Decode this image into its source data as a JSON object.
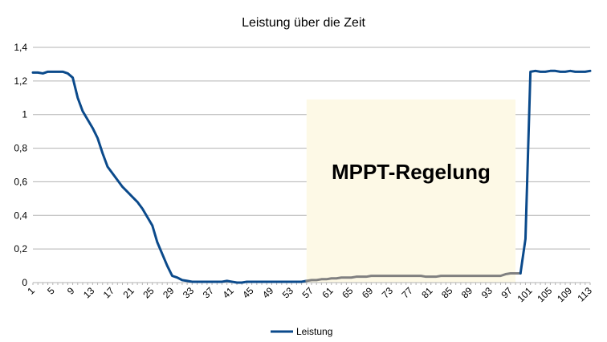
{
  "chart_data": {
    "type": "line",
    "title": "Leistung über die Zeit",
    "xlabel": "",
    "ylabel": "",
    "ylim": [
      0,
      1.4
    ],
    "yticks": [
      "0",
      "0,2",
      "0,4",
      "0,6",
      "0,8",
      "1",
      "1,2",
      "1,4"
    ],
    "x_count": 113,
    "x_tick_step": 4,
    "grid": "horizontal",
    "legend_position": "bottom",
    "series": [
      {
        "name": "Leistung",
        "color": "#0b4a8b",
        "highlight_color": "#808080",
        "highlight_range": [
          56,
          99
        ],
        "values": [
          1.25,
          1.25,
          1.245,
          1.255,
          1.255,
          1.255,
          1.255,
          1.245,
          1.22,
          1.1,
          1.02,
          0.97,
          0.92,
          0.86,
          0.77,
          0.69,
          0.65,
          0.61,
          0.57,
          0.54,
          0.51,
          0.48,
          0.44,
          0.39,
          0.34,
          0.24,
          0.17,
          0.1,
          0.04,
          0.03,
          0.015,
          0.01,
          0.005,
          0.005,
          0.005,
          0.005,
          0.005,
          0.005,
          0.005,
          0.01,
          0.005,
          0.0,
          0.0,
          0.005,
          0.005,
          0.005,
          0.005,
          0.005,
          0.005,
          0.005,
          0.005,
          0.005,
          0.005,
          0.005,
          0.005,
          0.01,
          0.015,
          0.015,
          0.02,
          0.02,
          0.025,
          0.025,
          0.03,
          0.03,
          0.03,
          0.035,
          0.035,
          0.035,
          0.04,
          0.04,
          0.04,
          0.04,
          0.04,
          0.04,
          0.04,
          0.04,
          0.04,
          0.04,
          0.04,
          0.035,
          0.035,
          0.035,
          0.04,
          0.04,
          0.04,
          0.04,
          0.04,
          0.04,
          0.04,
          0.04,
          0.04,
          0.04,
          0.04,
          0.04,
          0.04,
          0.05,
          0.055,
          0.055,
          0.055,
          0.26,
          1.255,
          1.26,
          1.255,
          1.255,
          1.26,
          1.26,
          1.255,
          1.255,
          1.26,
          1.255,
          1.255,
          1.255,
          1.26
        ]
      }
    ],
    "annotation": {
      "text": "MPPT-Regelung",
      "range": [
        56,
        98
      ],
      "ylim": [
        0,
        1.09
      ],
      "fill": "#fdf9e6"
    }
  }
}
